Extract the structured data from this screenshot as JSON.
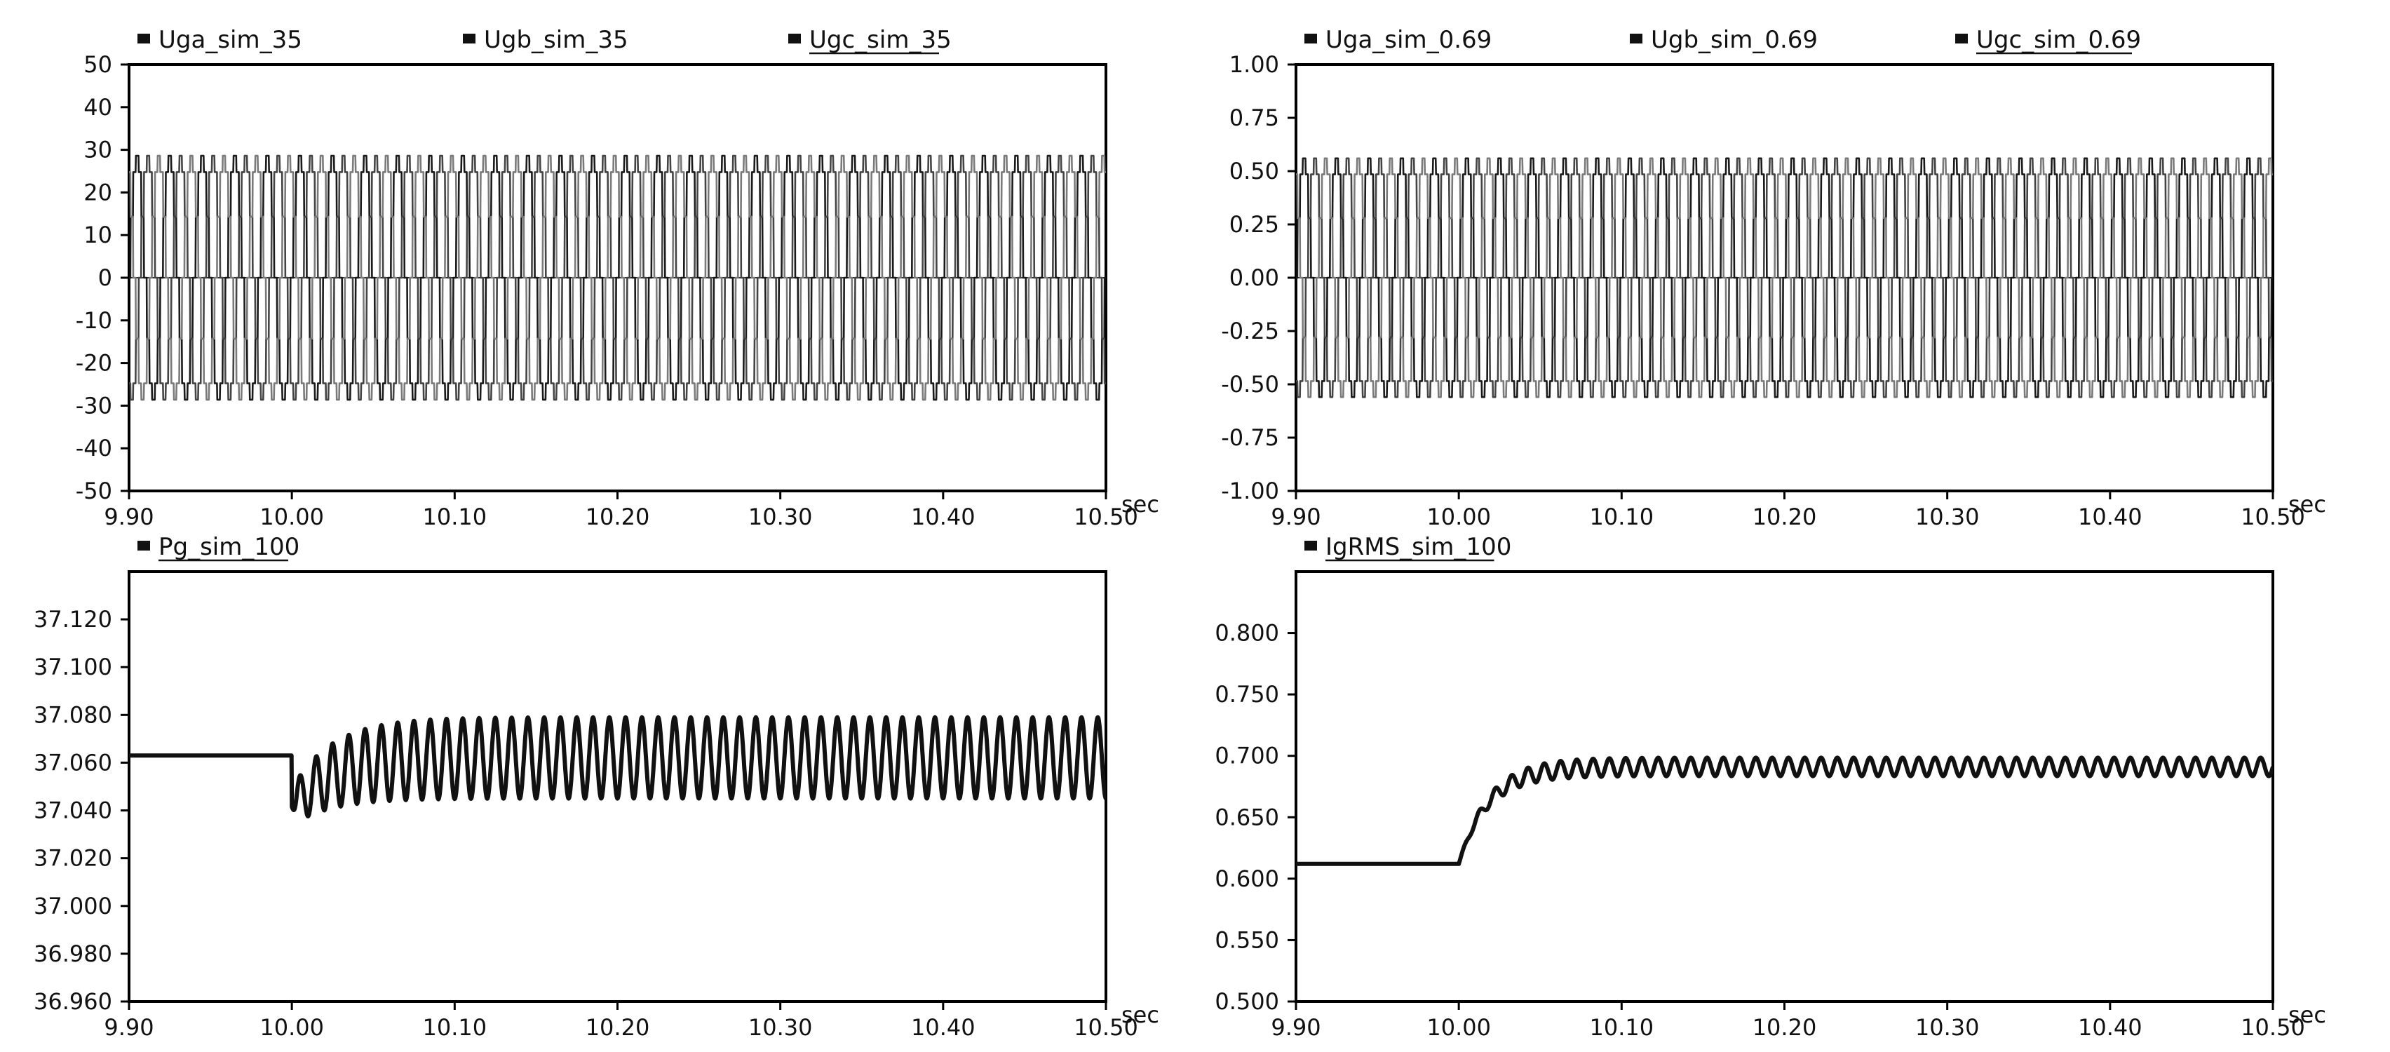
{
  "chart_data": [
    {
      "type": "line",
      "x_unit": "sec",
      "xlim": [
        9.9,
        10.5
      ],
      "x_ticks": [
        9.9,
        10.0,
        10.1,
        10.2,
        10.3,
        10.4,
        10.5
      ],
      "x_tick_labels": [
        "9.90",
        "10.00",
        "10.10",
        "10.20",
        "10.30",
        "10.40",
        "10.50"
      ],
      "ylim": [
        -50,
        50
      ],
      "y_ticks": [
        50,
        40,
        30,
        20,
        10,
        0,
        -10,
        -20,
        -30,
        -40,
        -50
      ],
      "y_tick_labels": [
        "50",
        "40",
        "30",
        "20",
        "10",
        "0",
        "-10",
        "-20",
        "-30",
        "-40",
        "-50"
      ],
      "series": [
        {
          "name": "Uga_sim_35",
          "waveform": "three-phase stepped sine",
          "frequency_hz": 50,
          "amplitude": 28.6,
          "phase_deg": 0,
          "color": "#1a1a1a"
        },
        {
          "name": "Ugb_sim_35",
          "waveform": "three-phase stepped sine",
          "frequency_hz": 50,
          "amplitude": 28.6,
          "phase_deg": -120,
          "color": "#444444"
        },
        {
          "name": "Ugc_sim_35",
          "waveform": "three-phase stepped sine",
          "frequency_hz": 50,
          "amplitude": 28.6,
          "phase_deg": 120,
          "color": "#7a7a7a"
        }
      ],
      "zero_line": true,
      "legend": "top"
    },
    {
      "type": "line",
      "x_unit": "sec",
      "xlim": [
        9.9,
        10.5
      ],
      "x_ticks": [
        9.9,
        10.0,
        10.1,
        10.2,
        10.3,
        10.4,
        10.5
      ],
      "x_tick_labels": [
        "9.90",
        "10.00",
        "10.10",
        "10.20",
        "10.30",
        "10.40",
        "10.50"
      ],
      "ylim": [
        -1.0,
        1.0
      ],
      "y_ticks": [
        1.0,
        0.75,
        0.5,
        0.25,
        0.0,
        -0.25,
        -0.5,
        -0.75,
        -1.0
      ],
      "y_tick_labels": [
        "1.00",
        "0.75",
        "0.50",
        "0.25",
        "0.00",
        "-0.25",
        "-0.50",
        "-0.75",
        "-1.00"
      ],
      "series": [
        {
          "name": "Uga_sim_0.69",
          "waveform": "three-phase stepped sine",
          "frequency_hz": 50,
          "amplitude": 0.56,
          "phase_deg": 0,
          "color": "#1a1a1a"
        },
        {
          "name": "Ugb_sim_0.69",
          "waveform": "three-phase stepped sine",
          "frequency_hz": 50,
          "amplitude": 0.56,
          "phase_deg": -120,
          "color": "#444444"
        },
        {
          "name": "Ugc_sim_0.69",
          "waveform": "three-phase stepped sine",
          "frequency_hz": 50,
          "amplitude": 0.56,
          "phase_deg": 120,
          "color": "#7a7a7a"
        }
      ],
      "zero_line": true,
      "legend": "top"
    },
    {
      "type": "line",
      "x_unit": "sec",
      "xlim": [
        9.9,
        10.5
      ],
      "x_ticks": [
        9.9,
        10.0,
        10.1,
        10.2,
        10.3,
        10.4,
        10.5
      ],
      "x_tick_labels": [
        "9.90",
        "10.00",
        "10.10",
        "10.20",
        "10.30",
        "10.40",
        "10.50"
      ],
      "ylim": [
        36.96,
        37.14
      ],
      "y_ticks": [
        37.12,
        37.1,
        37.08,
        37.06,
        37.04,
        37.02,
        37.0,
        36.98,
        36.96
      ],
      "y_tick_labels": [
        "37.120",
        "37.100",
        "37.080",
        "37.060",
        "37.040",
        "37.020",
        "37.000",
        "36.980",
        "36.960"
      ],
      "series": [
        {
          "name": "Pg_sim_100",
          "waveform": "step then oscillation",
          "initial_value": 37.063,
          "step_time": 10.0,
          "min_value_after_step": 37.03,
          "settled_center": 37.062,
          "settled_amplitude": 0.017,
          "oscillation_frequency_hz": 100,
          "settle_time_constant": 0.025,
          "color": "#111111"
        }
      ],
      "legend": "top"
    },
    {
      "type": "line",
      "x_unit": "sec",
      "xlim": [
        9.9,
        10.5
      ],
      "x_ticks": [
        9.9,
        10.0,
        10.1,
        10.2,
        10.3,
        10.4,
        10.5
      ],
      "x_tick_labels": [
        "9.90",
        "10.00",
        "10.10",
        "10.20",
        "10.30",
        "10.40",
        "10.50"
      ],
      "ylim": [
        0.5,
        0.85
      ],
      "y_ticks": [
        0.8,
        0.75,
        0.7,
        0.65,
        0.6,
        0.55,
        0.5
      ],
      "y_tick_labels": [
        "0.800",
        "0.750",
        "0.700",
        "0.650",
        "0.600",
        "0.550",
        "0.500"
      ],
      "series": [
        {
          "name": "IgRMS_sim_100",
          "waveform": "step then ripple",
          "initial_value": 0.612,
          "step_time": 10.0,
          "settled_value": 0.691,
          "settled_amplitude": 0.0075,
          "ripple_frequency_hz": 100,
          "settle_time_constant": 0.018,
          "color": "#111111"
        }
      ],
      "legend": "top"
    }
  ]
}
